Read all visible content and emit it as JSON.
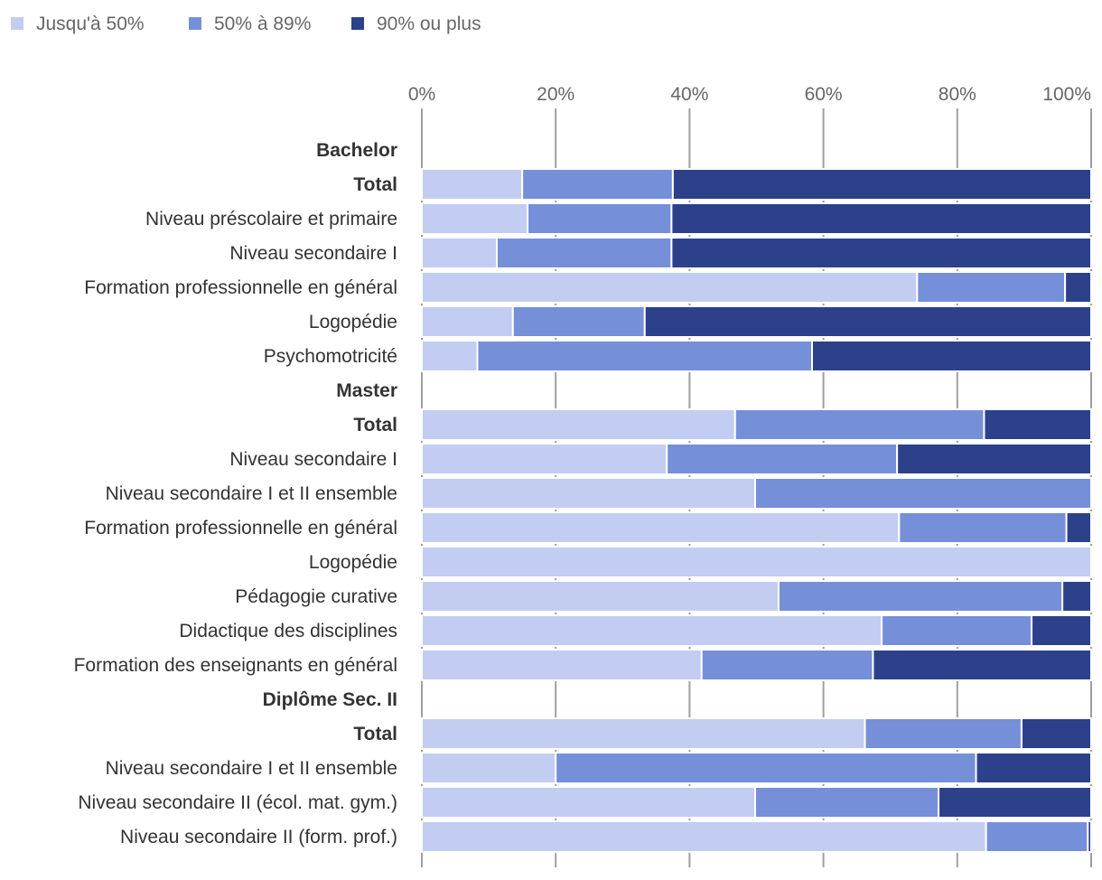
{
  "chart_data": {
    "type": "bar",
    "orientation": "horizontal",
    "stacked": true,
    "legend_position": "top-left",
    "xlim": [
      0,
      100
    ],
    "x_ticks": [
      "0%",
      "20%",
      "40%",
      "60%",
      "80%",
      "100%"
    ],
    "series": [
      {
        "name": "Jusqu'à 50%",
        "color": "#c3cdf2"
      },
      {
        "name": "50% à 89%",
        "color": "#758fd9"
      },
      {
        "name": "90% ou plus",
        "color": "#2c418a"
      }
    ],
    "rows": [
      {
        "label": "Bachelor",
        "header": true
      },
      {
        "label": "Total",
        "bold": true,
        "values": [
          15,
          22.5,
          62.5
        ]
      },
      {
        "label": "Niveau préscolaire et primaire",
        "values": [
          15.8,
          21.5,
          62.7
        ]
      },
      {
        "label": "Niveau secondaire I",
        "values": [
          11.2,
          26.1,
          62.7
        ]
      },
      {
        "label": "Formation professionnelle en général",
        "values": [
          74,
          22.1,
          3.9
        ]
      },
      {
        "label": "Logopédie",
        "values": [
          13.6,
          19.7,
          66.7
        ]
      },
      {
        "label": "Psychomotricité",
        "values": [
          8.3,
          50,
          41.7
        ]
      },
      {
        "label": "Master",
        "header": true
      },
      {
        "label": "Total",
        "bold": true,
        "values": [
          46.8,
          37.2,
          16
        ]
      },
      {
        "label": "Niveau secondaire I",
        "values": [
          36.6,
          34.4,
          29
        ]
      },
      {
        "label": "Niveau secondaire I et II ensemble",
        "values": [
          49.8,
          50.2,
          0
        ]
      },
      {
        "label": "Formation professionnelle en général",
        "values": [
          71.3,
          25,
          3.7
        ]
      },
      {
        "label": "Logopédie",
        "values": [
          100,
          0,
          0
        ]
      },
      {
        "label": "Pédagogie curative",
        "values": [
          53.3,
          42.4,
          4.3
        ]
      },
      {
        "label": "Didactique des disciplines",
        "values": [
          68.7,
          22.4,
          8.9
        ]
      },
      {
        "label": "Formation des enseignants en général",
        "values": [
          41.8,
          25.6,
          32.6
        ]
      },
      {
        "label": "Diplôme Sec. II",
        "header": true
      },
      {
        "label": "Total",
        "bold": true,
        "values": [
          66.2,
          23.4,
          10.4
        ]
      },
      {
        "label": "Niveau secondaire I et II ensemble",
        "values": [
          20,
          62.8,
          17.2
        ]
      },
      {
        "label": "Niveau secondaire II (écol. mat. gym.)",
        "values": [
          49.8,
          27.4,
          22.8
        ]
      },
      {
        "label": "Niveau secondaire II (form. prof.)",
        "values": [
          84.3,
          15.2,
          0.5
        ]
      }
    ]
  }
}
